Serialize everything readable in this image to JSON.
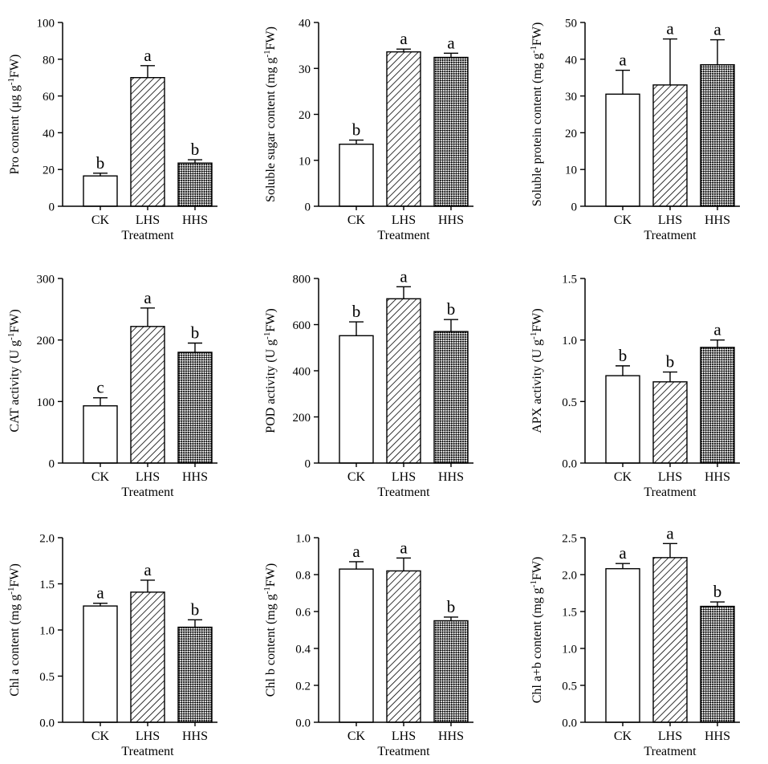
{
  "colors": {
    "axis": "#000000",
    "fill_ck": "#ffffff",
    "pattern": "#000000"
  },
  "chart_data": [
    {
      "type": "bar",
      "title": "",
      "xlabel": "Treatment",
      "ylabel": "Pro content (μg g-1FW)",
      "ylabel_main": "Pro content (μg g",
      "ylabel_sup": "-1",
      "ylabel_tail": "FW)",
      "categories": [
        "CK",
        "LHS",
        "HHS"
      ],
      "values": [
        16.5,
        70,
        23.5
      ],
      "errors": [
        1.5,
        6.5,
        1.8
      ],
      "letters": [
        "b",
        "a",
        "b"
      ],
      "ylim": [
        0,
        100
      ],
      "yticks": [
        0,
        20,
        40,
        60,
        80,
        100
      ],
      "ytick_labels": [
        "0",
        "20",
        "40",
        "60",
        "80",
        "100"
      ]
    },
    {
      "type": "bar",
      "title": "",
      "xlabel": "Treatment",
      "ylabel": "Soluble sugar content (mg g-1FW)",
      "ylabel_main": "Soluble sugar content (mg g",
      "ylabel_sup": "-1",
      "ylabel_tail": "FW)",
      "categories": [
        "CK",
        "LHS",
        "HHS"
      ],
      "values": [
        13.5,
        33.6,
        32.4
      ],
      "errors": [
        0.9,
        0.6,
        0.9
      ],
      "letters": [
        "b",
        "a",
        "a"
      ],
      "ylim": [
        0,
        40
      ],
      "yticks": [
        0,
        10,
        20,
        30,
        40
      ],
      "ytick_labels": [
        "0",
        "10",
        "20",
        "30",
        "40"
      ]
    },
    {
      "type": "bar",
      "title": "",
      "xlabel": "Treatment",
      "ylabel": "Soluble protein content (mg g-1FW)",
      "ylabel_main": "Soluble protein content (mg g",
      "ylabel_sup": "-1",
      "ylabel_tail": "FW)",
      "categories": [
        "CK",
        "LHS",
        "HHS"
      ],
      "values": [
        30.5,
        33,
        38.5
      ],
      "errors": [
        6.5,
        12.5,
        6.8
      ],
      "letters": [
        "a",
        "a",
        "a"
      ],
      "ylim": [
        0,
        50
      ],
      "yticks": [
        0,
        10,
        20,
        30,
        40,
        50
      ],
      "ytick_labels": [
        "0",
        "10",
        "20",
        "30",
        "40",
        "50"
      ]
    },
    {
      "type": "bar",
      "title": "",
      "xlabel": "Treatment",
      "ylabel": "CAT activity (U g-1FW)",
      "ylabel_main": "CAT activity (U g",
      "ylabel_sup": "-1",
      "ylabel_tail": "FW)",
      "categories": [
        "CK",
        "LHS",
        "HHS"
      ],
      "values": [
        93,
        222,
        180
      ],
      "errors": [
        13,
        30,
        15
      ],
      "letters": [
        "c",
        "a",
        "b"
      ],
      "ylim": [
        0,
        300
      ],
      "yticks": [
        0,
        100,
        200,
        300
      ],
      "ytick_labels": [
        "0",
        "100",
        "200",
        "300"
      ]
    },
    {
      "type": "bar",
      "title": "",
      "xlabel": "Treatment",
      "ylabel": "POD activity (U g-1FW)",
      "ylabel_main": "POD activity (U g",
      "ylabel_sup": "-1",
      "ylabel_tail": "FW)",
      "categories": [
        "CK",
        "LHS",
        "HHS"
      ],
      "values": [
        552,
        712,
        570
      ],
      "errors": [
        60,
        52,
        52
      ],
      "letters": [
        "b",
        "a",
        "b"
      ],
      "ylim": [
        0,
        800
      ],
      "yticks": [
        0,
        200,
        400,
        600,
        800
      ],
      "ytick_labels": [
        "0",
        "200",
        "400",
        "600",
        "800"
      ]
    },
    {
      "type": "bar",
      "title": "",
      "xlabel": "Treatment",
      "ylabel": "APX activity (U g-1FW)",
      "ylabel_main": "APX activity (U g",
      "ylabel_sup": "-1",
      "ylabel_tail": "FW)",
      "categories": [
        "CK",
        "LHS",
        "HHS"
      ],
      "values": [
        0.71,
        0.66,
        0.94
      ],
      "errors": [
        0.08,
        0.08,
        0.06
      ],
      "letters": [
        "b",
        "b",
        "a"
      ],
      "ylim": [
        0,
        1.5
      ],
      "yticks": [
        0,
        0.5,
        1.0,
        1.5
      ],
      "ytick_labels": [
        "0.0",
        "0.5",
        "1.0",
        "1.5"
      ]
    },
    {
      "type": "bar",
      "title": "",
      "xlabel": "Treatment",
      "ylabel": "Chl a content (mg g-1FW)",
      "ylabel_main": "Chl a content (mg g",
      "ylabel_sup": "-1",
      "ylabel_tail": "FW)",
      "categories": [
        "CK",
        "LHS",
        "HHS"
      ],
      "values": [
        1.26,
        1.41,
        1.03
      ],
      "errors": [
        0.03,
        0.13,
        0.08
      ],
      "letters": [
        "a",
        "a",
        "b"
      ],
      "ylim": [
        0,
        2.0
      ],
      "yticks": [
        0,
        0.5,
        1.0,
        1.5,
        2.0
      ],
      "ytick_labels": [
        "0.0",
        "0.5",
        "1.0",
        "1.5",
        "2.0"
      ]
    },
    {
      "type": "bar",
      "title": "",
      "xlabel": "Treatment",
      "ylabel": "Chl b content (mg g-1FW)",
      "ylabel_main": "Chl b content (mg g",
      "ylabel_sup": "-1",
      "ylabel_tail": "FW)",
      "categories": [
        "CK",
        "LHS",
        "HHS"
      ],
      "values": [
        0.83,
        0.82,
        0.55
      ],
      "errors": [
        0.04,
        0.07,
        0.02
      ],
      "letters": [
        "a",
        "a",
        "b"
      ],
      "ylim": [
        0,
        1.0
      ],
      "yticks": [
        0,
        0.2,
        0.4,
        0.6,
        0.8,
        1.0
      ],
      "ytick_labels": [
        "0.0",
        "0.2",
        "0.4",
        "0.6",
        "0.8",
        "1.0"
      ]
    },
    {
      "type": "bar",
      "title": "",
      "xlabel": "Treatment",
      "ylabel": "Chl a+b content (mg g-1FW)",
      "ylabel_main": "Chl a+b content (mg g",
      "ylabel_sup": "-1",
      "ylabel_tail": "FW)",
      "categories": [
        "CK",
        "LHS",
        "HHS"
      ],
      "values": [
        2.08,
        2.23,
        1.57
      ],
      "errors": [
        0.07,
        0.19,
        0.06
      ],
      "letters": [
        "a",
        "a",
        "b"
      ],
      "ylim": [
        0,
        2.5
      ],
      "yticks": [
        0,
        0.5,
        1.0,
        1.5,
        2.0,
        2.5
      ],
      "ytick_labels": [
        "0.0",
        "0.5",
        "1.0",
        "1.5",
        "2.0",
        "2.5"
      ]
    }
  ]
}
